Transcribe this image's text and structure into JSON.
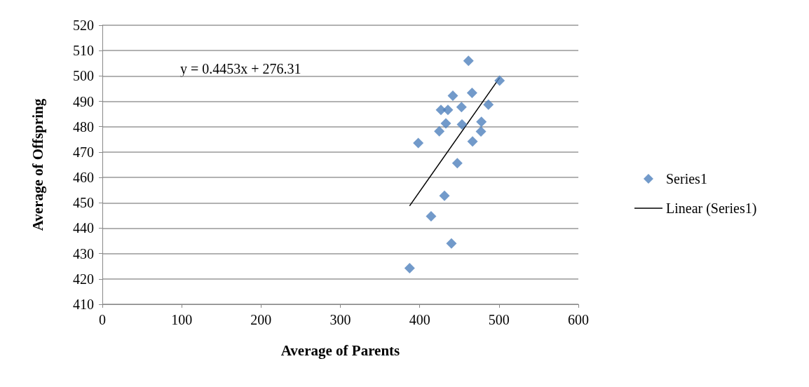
{
  "chart_data": {
    "type": "scatter",
    "xlabel": "Average of Parents",
    "ylabel": "Average of Offspring",
    "annotations": [
      "y = 0.4453x + 276.31"
    ],
    "series": [
      {
        "name": "Series1",
        "color": "#4f81bd",
        "marker": "diamond",
        "x": [
          461.5,
          500.7,
          441.8,
          466,
          486.6,
          426.8,
          435.6,
          452.7,
          433,
          453.3,
          477.8,
          424.7,
          477.2,
          398.2,
          466.6,
          447.4,
          431.2,
          414.4,
          440,
          387.3
        ],
        "values": [
          506,
          498.2,
          492.2,
          493.3,
          488.7,
          486.6,
          486.6,
          487.7,
          481.3,
          480.9,
          481.9,
          478.2,
          478.1,
          473.6,
          474.2,
          465.6,
          452.8,
          444.7,
          434,
          424.2
        ]
      },
      {
        "name": "Linear (Series1)",
        "type": "line",
        "color": "#000000",
        "marker": "none",
        "x": [
          387.3,
          500.7
        ],
        "values": [
          448.8,
          499.3
        ]
      }
    ],
    "xlim": [
      0,
      600
    ],
    "xticks": [
      0,
      100,
      200,
      300,
      400,
      500,
      600
    ],
    "ylim": [
      410,
      520
    ],
    "yticks": [
      410,
      420,
      430,
      440,
      450,
      460,
      470,
      480,
      490,
      500,
      510,
      520
    ],
    "grid": "y",
    "legend": "right"
  }
}
